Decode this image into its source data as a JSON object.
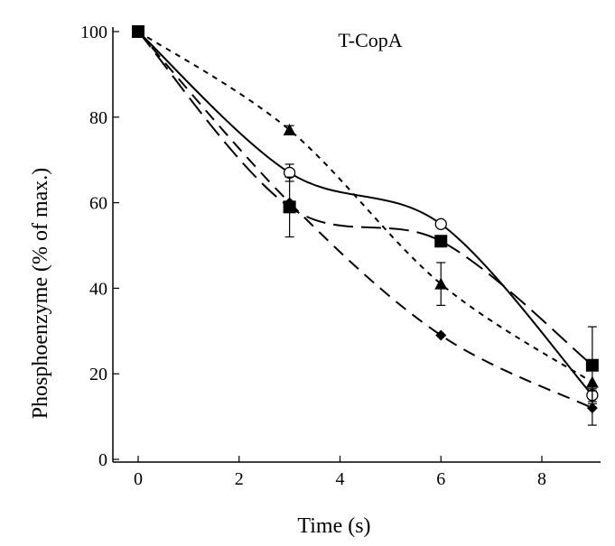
{
  "chart_data": {
    "type": "line",
    "title": "T-CopA",
    "xlabel": "Time (s)",
    "ylabel": "Phosphoenzyme (% of max.)",
    "xlim": [
      0,
      10
    ],
    "ylim": [
      0,
      100
    ],
    "xticks": [
      0,
      2,
      4,
      6,
      8
    ],
    "yticks": [
      0,
      20,
      40,
      60,
      80,
      100
    ],
    "grid": false,
    "series": [
      {
        "marker": "open-circle",
        "line": "solid",
        "x": [
          0,
          3,
          6,
          9
        ],
        "y": [
          100,
          67,
          55,
          15
        ],
        "err": [
          0,
          2,
          0,
          1.5
        ]
      },
      {
        "marker": "filled-square",
        "line": "long-dash",
        "x": [
          0,
          3,
          6,
          9
        ],
        "y": [
          100,
          59,
          51,
          22
        ],
        "err": [
          0,
          7,
          0,
          9
        ]
      },
      {
        "marker": "filled-triangle",
        "line": "short-dash",
        "x": [
          0,
          3,
          6,
          9
        ],
        "y": [
          100,
          77,
          41,
          18
        ],
        "err": [
          0,
          1,
          5,
          0
        ]
      },
      {
        "marker": "filled-diamond",
        "line": "medium-dash",
        "x": [
          0,
          3,
          6,
          9
        ],
        "y": [
          100,
          60,
          29,
          12
        ],
        "err": [
          0,
          0,
          0,
          4
        ]
      }
    ]
  }
}
